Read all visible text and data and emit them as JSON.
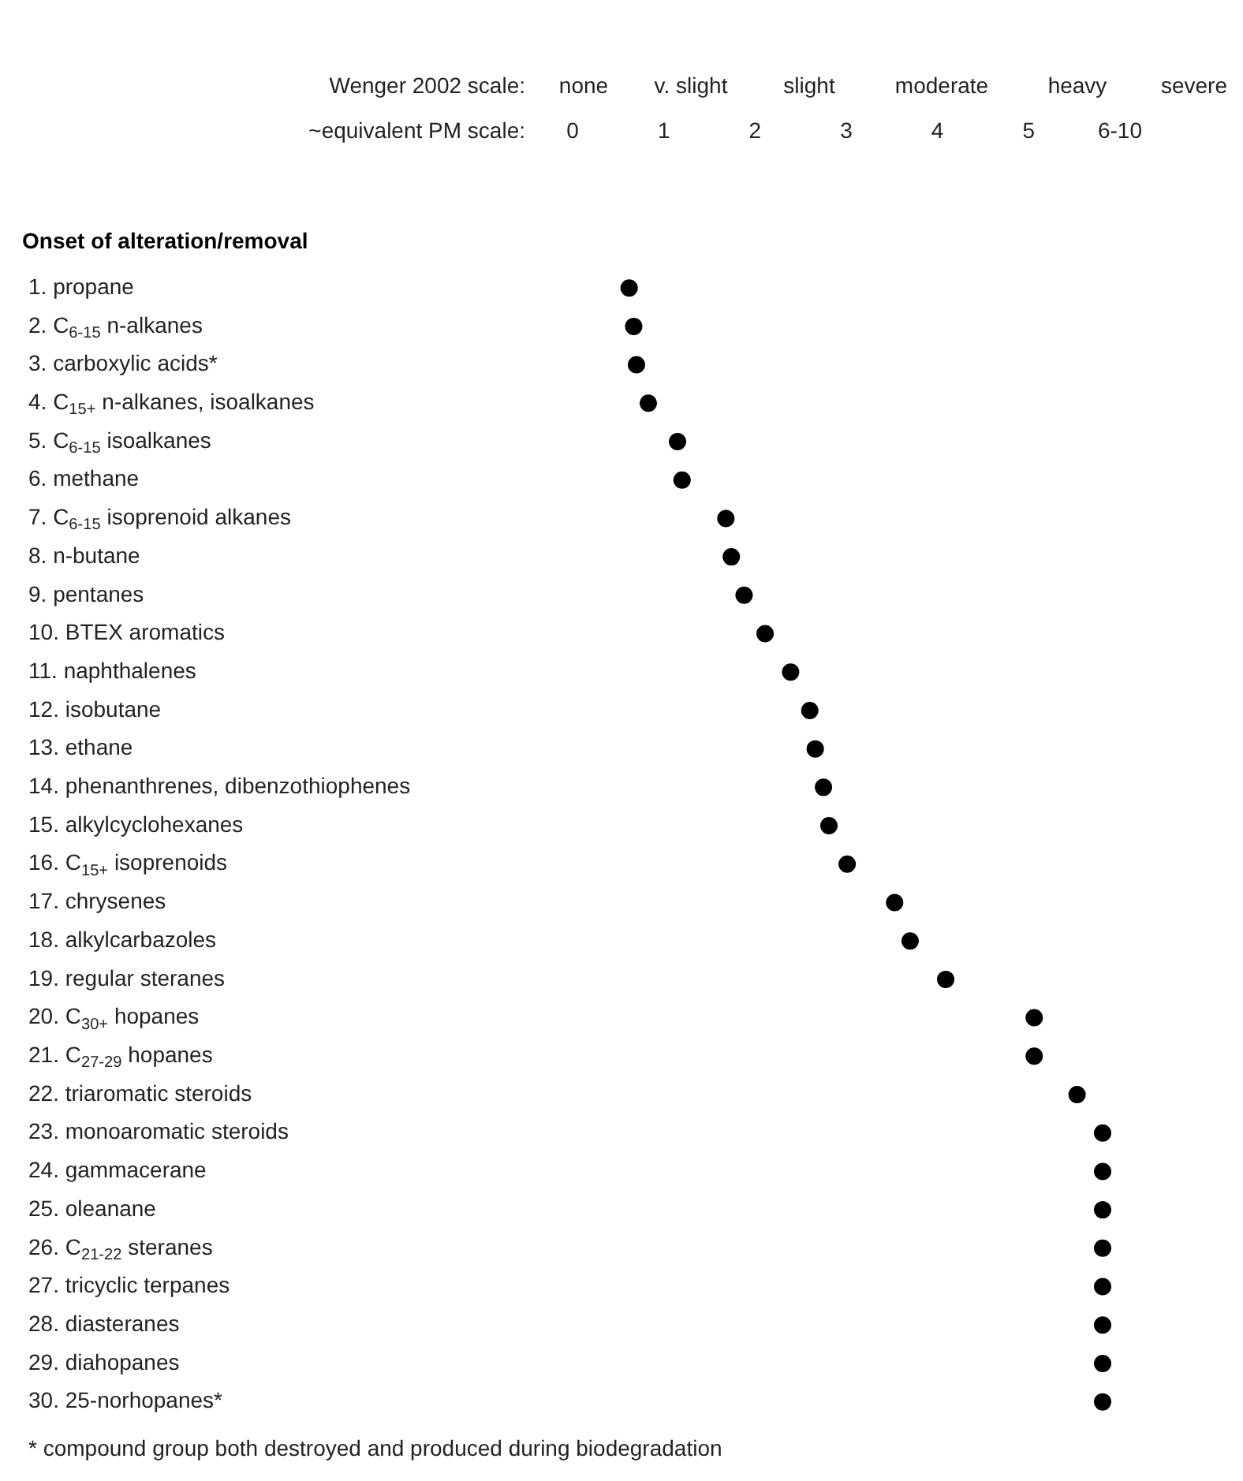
{
  "chart_data": {
    "type": "scatter",
    "orientation": "horizontal",
    "title": "Onset of alteration/removal",
    "xlabel": "~equivalent PM scale:",
    "categories": [
      "1. propane",
      "2. C$_{6-15}$ n-alkanes",
      "3. carboxylic acids*",
      "4. C$_{15+}$ n-alkanes, isoalkanes",
      "5. C$_{6-15}$ isoalkanes",
      "6. methane",
      "7. C$_{6-15}$ isoprenoid alkanes",
      "8. n-butane",
      "9. pentanes",
      "10. BTEX aromatics",
      "11. naphthalenes",
      "12. isobutane",
      "13. ethane",
      "14. phenanthrenes, dibenzothiophenes",
      "15. alkylcyclohexanes",
      "16. C$_{15+}$ isoprenoids",
      "17. chrysenes",
      "18. alkylcarbazoles",
      "19. regular steranes",
      "20. C$_{30+}$ hopanes",
      "21. C$_{27-29}$ hopanes",
      "22. triaromatic steroids",
      "23. monoaromatic steroids",
      "24. gammacerane",
      "25. oleanane",
      "26. C$_{21-22}$ steranes",
      "27. tricyclic terpanes",
      "28. diasteranes",
      "29. diahopanes",
      "30. 25-norhopanes*"
    ],
    "series": [
      {
        "color": "#000000",
        "values": [
          0.62,
          0.67,
          0.7,
          0.83,
          1.15,
          1.2,
          1.68,
          1.74,
          1.88,
          2.11,
          2.39,
          2.6,
          2.66,
          2.75,
          2.81,
          3.01,
          3.53,
          3.7,
          4.09,
          5.06,
          5.06,
          5.53,
          5.81,
          5.81,
          5.81,
          5.81,
          5.81,
          5.81,
          5.81,
          5.81
        ]
      }
    ],
    "xlim": [
      0,
      6
    ],
    "xticks": [
      0,
      1,
      2,
      3,
      4,
      5,
      {
        "value": 6,
        "label": "6-10"
      }
    ],
    "marker": "circle",
    "annotations": [
      "Wenger 2002 scale:",
      "none",
      "v. slight",
      "slight",
      "moderate",
      "heavy",
      "severe",
      "* compound group both destroyed and produced during biodegradation"
    ]
  }
}
